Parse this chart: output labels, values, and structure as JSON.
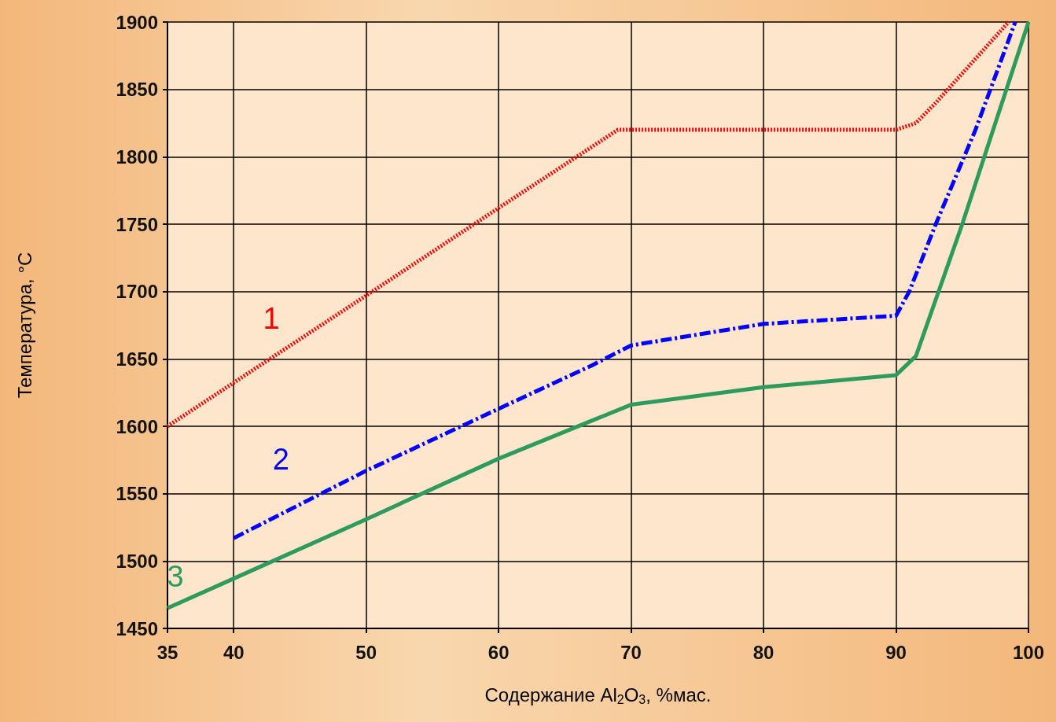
{
  "chart_data": {
    "type": "line",
    "xlabel": "Содержание Al$_{2}$O$_{3}$, %мас.",
    "ylabel": "Температура, °C",
    "xlim": [
      35,
      100
    ],
    "xticks": [
      35,
      40,
      50,
      60,
      70,
      80,
      90,
      100
    ],
    "ylim": [
      1450,
      1900
    ],
    "yticks": [
      1450,
      1500,
      1550,
      1600,
      1650,
      1700,
      1750,
      1800,
      1850,
      1900
    ],
    "grid": true,
    "marker": "none",
    "series": [
      {
        "name": "1",
        "color": "#ff0000",
        "line_style": "dotted",
        "x": [
          35,
          50,
          60,
          69,
          90,
          91.5,
          93,
          98.5
        ],
        "values": [
          1600,
          1697,
          1762,
          1820,
          1820,
          1825,
          1840,
          1900
        ]
      },
      {
        "name": "2",
        "color": "#0000ff",
        "line_style": "dashdot",
        "x": [
          40,
          50,
          60,
          67,
          70,
          80,
          90,
          91,
          93,
          96,
          99
        ],
        "values": [
          1517,
          1567,
          1613,
          1645,
          1660,
          1676,
          1682,
          1700,
          1750,
          1820,
          1900
        ]
      },
      {
        "name": "3",
        "color": "#2e9a5e",
        "line_style": "solid",
        "x": [
          35,
          40,
          50,
          60,
          70,
          80,
          90,
          91.5,
          95,
          100
        ],
        "values": [
          1465,
          1487,
          1531,
          1576,
          1616,
          1629,
          1638,
          1652,
          1750,
          1900
        ]
      }
    ]
  }
}
